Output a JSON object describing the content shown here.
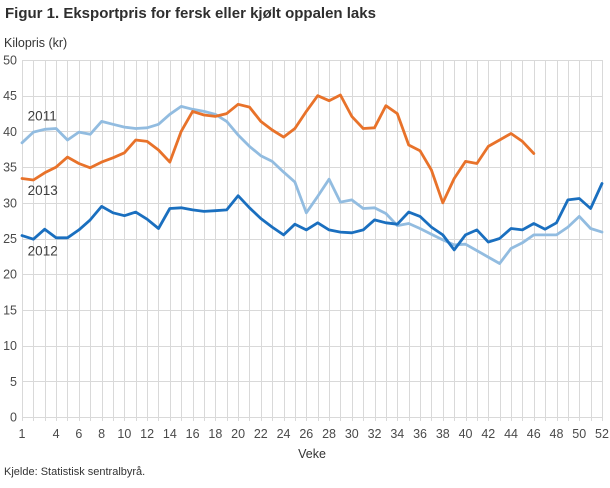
{
  "header": {
    "title": "Figur 1. Eksportpris for fersk eller kjølt oppalen laks"
  },
  "source": {
    "text": "Kjelde: Statistisk sentralbyrå."
  },
  "chart_data": {
    "type": "line",
    "title": "Figur 1. Eksportpris for fersk eller kjølt oppalen laks",
    "ylabel": "Kilopris (kr)",
    "xlabel": "Veke",
    "ylim": [
      0,
      50
    ],
    "xlim": [
      1,
      52
    ],
    "y_ticks": [
      0,
      5,
      10,
      15,
      20,
      25,
      30,
      35,
      40,
      45,
      50
    ],
    "x_ticks": [
      1,
      4,
      6,
      8,
      10,
      12,
      14,
      16,
      18,
      20,
      22,
      24,
      26,
      28,
      30,
      32,
      34,
      36,
      38,
      40,
      42,
      44,
      46,
      48,
      50,
      52
    ],
    "grid": true,
    "grid_color": "#d9d9d9",
    "axis_text_color": "#4a4a4a",
    "legend_position": "inline-labels",
    "series": [
      {
        "name": "2011",
        "color": "#92bce0",
        "start_week": 1,
        "values": [
          38.4,
          39.9,
          40.3,
          40.4,
          38.8,
          39.9,
          39.6,
          41.4,
          41.0,
          40.6,
          40.4,
          40.5,
          41.0,
          42.4,
          43.5,
          43.1,
          42.8,
          42.4,
          41.4,
          39.5,
          37.9,
          36.6,
          35.8,
          34.3,
          32.9,
          28.6,
          30.9,
          33.3,
          30.1,
          30.4,
          29.2,
          29.3,
          28.5,
          26.8,
          27.1,
          26.4,
          25.6,
          24.8,
          24.1,
          24.2,
          23.3,
          22.4,
          21.5,
          23.6,
          24.4,
          25.5,
          25.5,
          25.5,
          26.6,
          28.1,
          26.4,
          25.9
        ]
      },
      {
        "name": "2012",
        "color": "#1a6fbf",
        "start_week": 1,
        "values": [
          25.4,
          24.9,
          26.3,
          25.1,
          25.1,
          26.2,
          27.6,
          29.5,
          28.6,
          28.2,
          28.7,
          27.7,
          26.4,
          29.2,
          29.3,
          29.0,
          28.8,
          28.9,
          29.0,
          31.0,
          29.3,
          27.8,
          26.6,
          25.5,
          27.0,
          26.2,
          27.2,
          26.2,
          25.9,
          25.8,
          26.2,
          27.6,
          27.2,
          27.0,
          28.7,
          28.1,
          26.6,
          25.5,
          23.4,
          25.5,
          26.2,
          24.5,
          25.0,
          26.4,
          26.2,
          27.1,
          26.3,
          27.2,
          30.4,
          30.6,
          29.2,
          32.7
        ]
      },
      {
        "name": "2013",
        "color": "#e8722a",
        "start_week": 1,
        "values": [
          33.4,
          33.2,
          34.2,
          35.0,
          36.4,
          35.5,
          34.9,
          35.7,
          36.3,
          37.0,
          38.8,
          38.6,
          37.4,
          35.7,
          40.0,
          42.8,
          42.3,
          42.1,
          42.5,
          43.8,
          43.4,
          41.4,
          40.2,
          39.2,
          40.4,
          42.8,
          45.0,
          44.3,
          45.1,
          42.1,
          40.4,
          40.5,
          43.6,
          42.5,
          38.1,
          37.3,
          34.6,
          30.0,
          33.4,
          35.8,
          35.5,
          37.9,
          38.8,
          39.7,
          38.6,
          36.9
        ]
      }
    ],
    "annotations": [
      {
        "text": "2011",
        "week": 1.5,
        "value": 41.5
      },
      {
        "text": "2013",
        "week": 1.5,
        "value": 31.1
      },
      {
        "text": "2012",
        "week": 1.5,
        "value": 22.6
      }
    ]
  }
}
